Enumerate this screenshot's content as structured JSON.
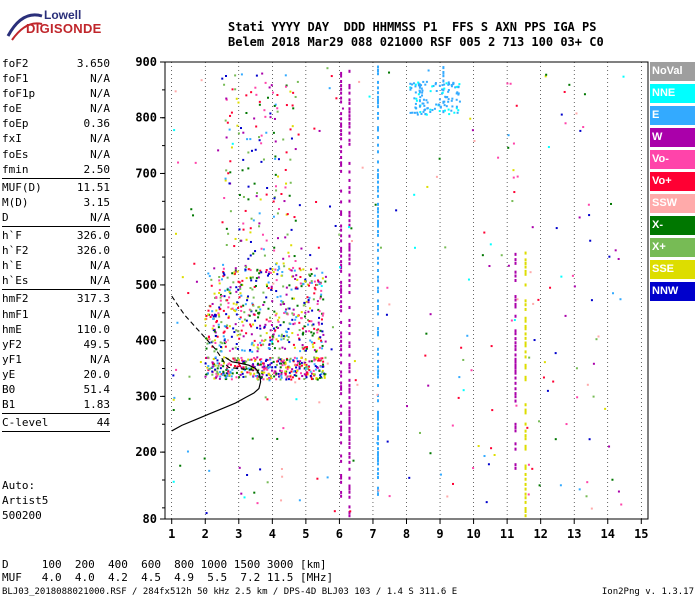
{
  "logo": {
    "line1": "Lowell",
    "line2": "DIGISONDE"
  },
  "header": {
    "row1": "Stati YYYY DAY  DDD HHMMSS P1  FFS S AXN PPS IGA PS",
    "row2": "Belem 2018 Mar29 088 021000 RSF 005 2 713 100 03+ C0"
  },
  "params": [
    {
      "k": "foF2",
      "v": "3.650"
    },
    {
      "k": "foF1",
      "v": "N/A"
    },
    {
      "k": "foF1p",
      "v": "N/A"
    },
    {
      "k": "foE",
      "v": "N/A"
    },
    {
      "k": "foEp",
      "v": "0.36"
    },
    {
      "k": "fxI",
      "v": "N/A"
    },
    {
      "k": "foEs",
      "v": "N/A"
    },
    {
      "k": "fmin",
      "v": "2.50"
    },
    {
      "sep": true
    },
    {
      "k": "MUF(D)",
      "v": "11.51"
    },
    {
      "k": "M(D)",
      "v": "3.15"
    },
    {
      "k": "D",
      "v": "N/A"
    },
    {
      "sep": true
    },
    {
      "k": "h`F",
      "v": "326.0"
    },
    {
      "k": "h`F2",
      "v": "326.0"
    },
    {
      "k": "h`E",
      "v": "N/A"
    },
    {
      "k": "h`Es",
      "v": "N/A"
    },
    {
      "sep": true
    },
    {
      "k": "hmF2",
      "v": "317.3"
    },
    {
      "k": "hmF1",
      "v": "N/A"
    },
    {
      "k": "hmE",
      "v": "110.0"
    },
    {
      "k": "yF2",
      "v": "49.5"
    },
    {
      "k": "yF1",
      "v": "N/A"
    },
    {
      "k": "yE",
      "v": "20.0"
    },
    {
      "k": "B0",
      "v": "51.4"
    },
    {
      "k": "B1",
      "v": "1.83"
    },
    {
      "sep": true
    },
    {
      "k": "C-level",
      "v": "44"
    },
    {
      "sep": true
    }
  ],
  "auto": {
    "label": "Auto:",
    "artist": "Artist5",
    "code": "500200"
  },
  "legend": [
    {
      "label": "NoVal",
      "color": "#9e9e9e"
    },
    {
      "label": "NNE",
      "color": "#00ffff"
    },
    {
      "label": "E",
      "color": "#33aaff"
    },
    {
      "label": "W",
      "color": "#aa00aa"
    },
    {
      "label": "Vo-",
      "color": "#ff44aa"
    },
    {
      "label": "Vo+",
      "color": "#ff0033"
    },
    {
      "label": "SSW",
      "color": "#ffaaaa"
    },
    {
      "label": "X-",
      "color": "#007700"
    },
    {
      "label": "X+",
      "color": "#77bb55"
    },
    {
      "label": "SSE",
      "color": "#dddd00"
    },
    {
      "label": "NNW",
      "color": "#0000cc"
    }
  ],
  "footer": {
    "d_row": "D     100  200  400  600  800 1000 1500 3000 [km]",
    "muf_row": "MUF   4.0  4.0  4.2  4.5  4.9  5.5  7.2 11.5 [MHz]"
  },
  "bottom": {
    "file": "BLJ03_2018088021000.RSF / 284fx512h 50 kHz 2.5 km / DPS-4D BLJ03 103 / 1.4 S 311.6 E",
    "version": "Ion2Png v. 1.3.17"
  },
  "chart_data": {
    "type": "scatter",
    "title": "",
    "xlabel": "",
    "ylabel": "",
    "xlim": [
      0.8,
      15.2
    ],
    "ylim": [
      80,
      900
    ],
    "x_ticks": [
      1,
      2,
      3,
      4,
      5,
      6,
      7,
      8,
      9,
      10,
      11,
      12,
      13,
      14,
      15
    ],
    "y_ticks": [
      80,
      200,
      300,
      400,
      500,
      600,
      700,
      800,
      900
    ],
    "grid": "dotted vertical at integer frequencies",
    "profile_curve": [
      [
        1.0,
        238
      ],
      [
        1.3,
        248
      ],
      [
        1.7,
        258
      ],
      [
        2.1,
        268
      ],
      [
        2.5,
        278
      ],
      [
        2.9,
        288
      ],
      [
        3.2,
        298
      ],
      [
        3.45,
        306
      ],
      [
        3.6,
        314
      ],
      [
        3.65,
        326
      ],
      [
        3.62,
        340
      ],
      [
        3.5,
        350
      ],
      [
        3.3,
        356
      ],
      [
        3.0,
        360
      ],
      [
        2.8,
        362
      ],
      [
        2.6,
        370
      ]
    ],
    "dashed_curve": [
      [
        1.0,
        480
      ],
      [
        1.2,
        462
      ],
      [
        1.4,
        445
      ],
      [
        1.7,
        425
      ],
      [
        2.0,
        405
      ],
      [
        2.3,
        385
      ],
      [
        2.5,
        368
      ],
      [
        2.6,
        358
      ],
      [
        2.7,
        352
      ],
      [
        3.0,
        350
      ],
      [
        3.3,
        348
      ],
      [
        3.6,
        346
      ]
    ],
    "traces": [
      {
        "color": "#aa00aa",
        "x": 6.3,
        "y_from": 85,
        "y_to": 890
      },
      {
        "color": "#aa00aa",
        "x": 6.05,
        "y_from": 120,
        "y_to": 880
      },
      {
        "color": "#33aaff",
        "x": 7.15,
        "y_from": 90,
        "y_to": 895
      },
      {
        "color": "#dddd00",
        "x": 11.55,
        "y_from": 85,
        "y_to": 560
      },
      {
        "color": "#33aaff",
        "x": 9.1,
        "y_from": 810,
        "y_to": 890
      },
      {
        "color": "#33aaff",
        "x": 8.4,
        "y_from": 815,
        "y_to": 860
      },
      {
        "color": "#aa00aa",
        "x": 11.25,
        "y_from": 170,
        "y_to": 560
      }
    ]
  }
}
